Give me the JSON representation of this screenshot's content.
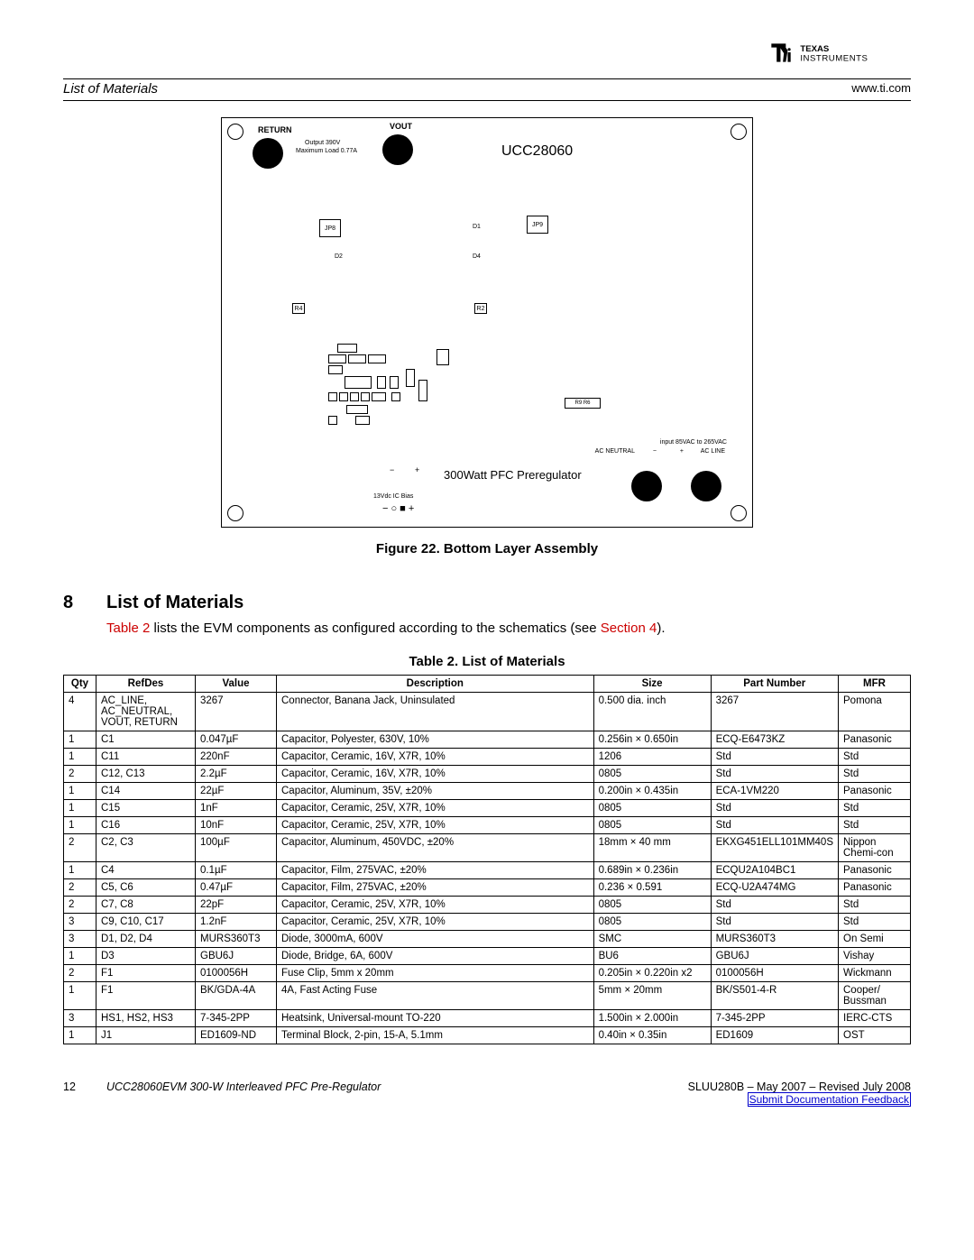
{
  "logo_text": "TEXAS INSTRUMENTS",
  "header": {
    "left": "List of Materials",
    "right": "www.ti.com"
  },
  "pcb": {
    "return": "RETURN",
    "vout": "VOUT",
    "out_line1": "Output 390V",
    "out_line2": "Maximum Load 0.77A",
    "title": "UCC28060",
    "jp8": "JP8",
    "jp9": "JP9",
    "d2": "D2",
    "d1": "D1",
    "d4": "D4",
    "r4": "R4",
    "r2": "R2",
    "watt": "300Watt PFC Preregulator",
    "bias": "13Vdc IC Bias",
    "minus": "−",
    "plus": "+",
    "input_line1": "input 85VAC to 265VAC",
    "ac_neutral": "AC NEUTRAL",
    "ac_line": "AC LINE",
    "r9r6": "R9   R6",
    "plusminus": "− ○ ■ +"
  },
  "figure_caption": "Figure 22. Bottom Layer Assembly",
  "section": {
    "num": "8",
    "title": "List of Materials",
    "body_pre": "Table 2",
    "body_mid": " lists the EVM components as configured according to the schematics (see ",
    "body_link": "Section 4",
    "body_post": ")."
  },
  "table_caption": "Table 2. List of Materials",
  "columns": [
    "Qty",
    "RefDes",
    "Value",
    "Description",
    "Size",
    "Part Number",
    "MFR"
  ],
  "rows": [
    [
      "4",
      "AC_LINE, AC_NEUTRAL, VOUT, RETURN",
      "3267",
      "Connector, Banana Jack, Uninsulated",
      "0.500 dia. inch",
      "3267",
      "Pomona"
    ],
    [
      "1",
      "C1",
      "0.047µF",
      "Capacitor, Polyester, 630V, 10%",
      "0.256in × 0.650in",
      "ECQ-E6473KZ",
      "Panasonic"
    ],
    [
      "1",
      "C11",
      "220nF",
      "Capacitor, Ceramic, 16V, X7R, 10%",
      "1206",
      "Std",
      "Std"
    ],
    [
      "2",
      "C12, C13",
      "2.2µF",
      "Capacitor, Ceramic, 16V, X7R, 10%",
      "0805",
      "Std",
      "Std"
    ],
    [
      "1",
      "C14",
      "22µF",
      "Capacitor, Aluminum, 35V, ±20%",
      "0.200in × 0.435in",
      "ECA-1VM220",
      "Panasonic"
    ],
    [
      "1",
      "C15",
      "1nF",
      "Capacitor, Ceramic, 25V, X7R, 10%",
      "0805",
      "Std",
      "Std"
    ],
    [
      "1",
      "C16",
      "10nF",
      "Capacitor, Ceramic, 25V, X7R, 10%",
      "0805",
      "Std",
      "Std"
    ],
    [
      "2",
      "C2, C3",
      "100µF",
      "Capacitor, Aluminum, 450VDC, ±20%",
      "18mm × 40 mm",
      "EKXG451ELL101MM40S",
      "Nippon Chemi-con"
    ],
    [
      "1",
      "C4",
      "0.1µF",
      "Capacitor, Film, 275VAC, ±20%",
      "0.689in × 0.236in",
      "ECQU2A104BC1",
      "Panasonic"
    ],
    [
      "2",
      "C5, C6",
      "0.47µF",
      "Capacitor, Film, 275VAC, ±20%",
      "0.236 × 0.591",
      "ECQ-U2A474MG",
      "Panasonic"
    ],
    [
      "2",
      "C7, C8",
      "22pF",
      "Capacitor, Ceramic, 25V, X7R, 10%",
      "0805",
      "Std",
      "Std"
    ],
    [
      "3",
      "C9, C10, C17",
      "1.2nF",
      "Capacitor, Ceramic, 25V, X7R, 10%",
      "0805",
      "Std",
      "Std"
    ],
    [
      "3",
      "D1, D2, D4",
      "MURS360T3",
      "Diode, 3000mA, 600V",
      "SMC",
      "MURS360T3",
      "On Semi"
    ],
    [
      "1",
      "D3",
      "GBU6J",
      "Diode, Bridge, 6A, 600V",
      "BU6",
      "GBU6J",
      "Vishay"
    ],
    [
      "2",
      "F1",
      "0100056H",
      "Fuse Clip, 5mm x 20mm",
      "0.205in × 0.220in x2",
      "0100056H",
      "Wickmann"
    ],
    [
      "1",
      "F1",
      "BK/GDA-4A",
      "4A, Fast Acting Fuse",
      "5mm × 20mm",
      "BK/S501-4-R",
      "Cooper/ Bussman"
    ],
    [
      "3",
      "HS1, HS2, HS3",
      "7-345-2PP",
      "Heatsink, Universal-mount TO-220",
      "1.500in × 2.000in",
      "7-345-2PP",
      "IERC-CTS"
    ],
    [
      "1",
      "J1",
      "ED1609-ND",
      "Terminal Block, 2-pin, 15-A, 5.1mm",
      "0.40in × 0.35in",
      "ED1609",
      "OST"
    ]
  ],
  "footer": {
    "page": "12",
    "title": "UCC28060EVM 300-W Interleaved PFC Pre-Regulator",
    "doc": "SLUU280B – May 2007 – Revised July 2008",
    "feedback": "Submit Documentation Feedback"
  }
}
